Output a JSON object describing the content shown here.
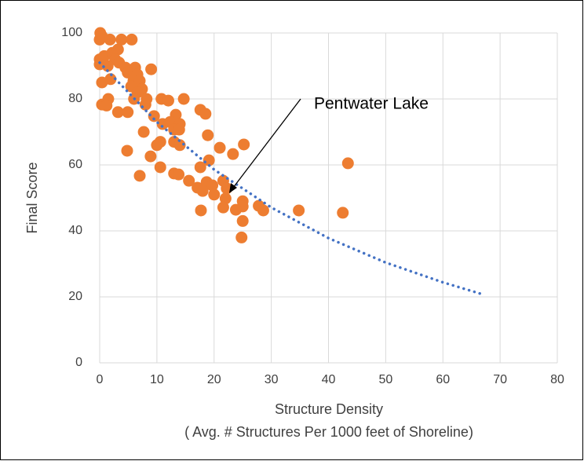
{
  "chart_data": {
    "type": "scatter",
    "xlabel": "Structure Density",
    "xlabel2": "( Avg. # Structures Per 1000 feet of Shoreline)",
    "ylabel": "Final Score",
    "annotation": "Pentwater  Lake",
    "xlim": [
      0,
      80
    ],
    "xticks": [
      0,
      10,
      20,
      30,
      40,
      50,
      60,
      70,
      80
    ],
    "ylim": [
      0,
      100
    ],
    "yticks": [
      0,
      20,
      40,
      60,
      80,
      100
    ],
    "grid": true,
    "series": [
      {
        "color": "#ed7d31",
        "x": [
          0.1,
          0,
          0.4,
          1.8,
          3.8,
          5.6,
          0,
          0.8,
          2.2,
          3.2,
          2.7,
          3.4,
          0,
          1.4,
          4.5,
          6.2,
          9,
          4.9,
          6.6,
          0.4,
          1.9,
          5.9,
          7,
          5.5,
          7.4,
          6.6,
          6,
          8.2,
          10.8,
          12,
          14.7,
          1.5,
          0.4,
          1.2,
          8,
          9.5,
          3.2,
          4.9,
          13.3,
          17.6,
          18.5,
          11,
          12.3,
          14,
          13,
          13.9,
          7.7,
          18.9,
          10.6,
          13,
          14,
          10,
          21,
          25.2,
          23.3,
          4.8,
          8.9,
          43.4,
          42.5,
          34.8,
          10.6,
          7,
          13,
          13.8,
          15.6,
          17.6,
          19.1,
          18.7,
          19.7,
          21.6,
          22.2,
          17.1,
          18,
          20,
          22,
          21.6,
          25,
          25,
          23.8,
          27.8,
          28.6,
          17.7,
          25,
          24.8
        ],
        "y": [
          100,
          98,
          99,
          98,
          98,
          98,
          92,
          93,
          94,
          95,
          92,
          91,
          90.5,
          90,
          89.5,
          89.5,
          89,
          88,
          87.4,
          85,
          86,
          85.5,
          85.5,
          83.8,
          83,
          82,
          80,
          80,
          80,
          79.5,
          80,
          80,
          78.3,
          78,
          78.3,
          74.8,
          76,
          76,
          75.2,
          76.7,
          75.5,
          72.4,
          73,
          72.4,
          70.7,
          70.7,
          70,
          69,
          67,
          67,
          66,
          66,
          65.2,
          66.2,
          63.3,
          64.3,
          62.6,
          60.5,
          45.5,
          46.2,
          59.3,
          56.7,
          57.4,
          57.1,
          55.2,
          59.3,
          61.4,
          54.8,
          53.8,
          55.2,
          52.9,
          53.1,
          52.1,
          51,
          49.8,
          47.1,
          49,
          47.4,
          46.4,
          47.6,
          46.2,
          46.2,
          43,
          38
        ]
      }
    ],
    "trendline": {
      "color": "#4472c4",
      "x": [
        0,
        10,
        20,
        30,
        40,
        50,
        60,
        66.5
      ],
      "y": [
        91,
        73,
        58.6,
        47.1,
        37.8,
        30.4,
        24.4,
        21
      ]
    }
  }
}
